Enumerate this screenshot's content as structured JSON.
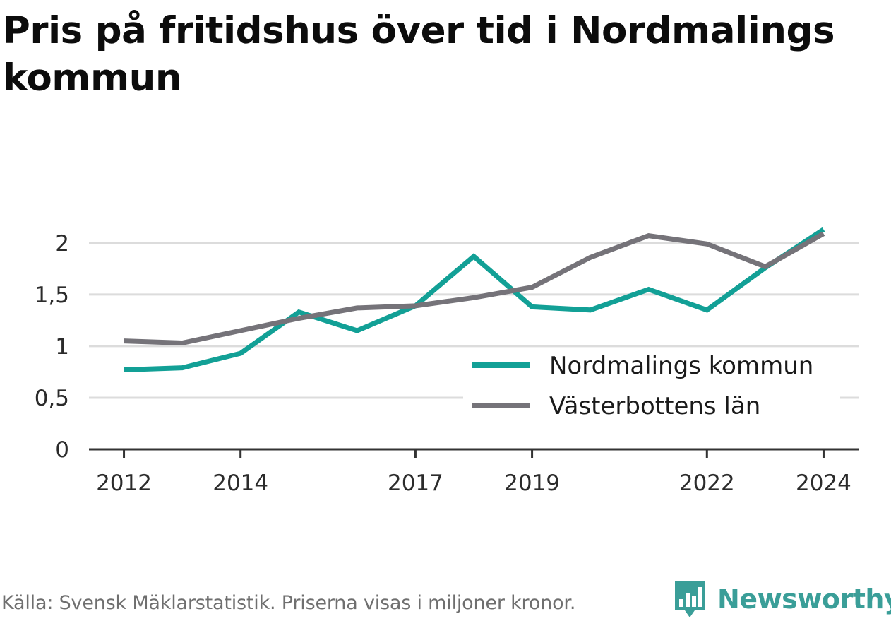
{
  "title": "Pris på fritidshus över tid i Nordmalings kommun",
  "footer": {
    "source": "Källa: Svensk Mäklarstatistik. Priserna visas i miljoner kronor.",
    "brand": "Newsworthy"
  },
  "colors": {
    "nordmaling": "#12a096",
    "vasterbotten": "#757379",
    "grid": "#dcdcdc",
    "axis": "#333333",
    "brand": "#3a9e98"
  },
  "icons": {
    "logo": "bar-chart-speech-bubble-icon"
  },
  "chart_data": {
    "type": "line",
    "title": "Pris på fritidshus över tid i Nordmalings kommun",
    "xlabel": "",
    "ylabel": "",
    "x": [
      2012,
      2013,
      2014,
      2015,
      2016,
      2017,
      2018,
      2019,
      2020,
      2021,
      2022,
      2023,
      2024
    ],
    "x_tick_labels": [
      "2012",
      "2014",
      "2017",
      "2019",
      "2022",
      "2024"
    ],
    "x_ticks": [
      2012,
      2014,
      2017,
      2019,
      2022,
      2024
    ],
    "xlim": [
      2011.4,
      2024.6
    ],
    "ylim": [
      0,
      2.3
    ],
    "y_ticks": [
      0,
      0.5,
      1,
      1.5,
      2
    ],
    "y_tick_labels": [
      "0",
      "0,5",
      "1",
      "1,5",
      "2"
    ],
    "grid": "horizontal",
    "legend_position": "bottom-right",
    "series": [
      {
        "name": "Nordmalings kommun",
        "color": "#12a096",
        "values": [
          0.77,
          0.79,
          0.93,
          1.33,
          1.15,
          1.39,
          1.87,
          1.38,
          1.35,
          1.55,
          1.35,
          1.76,
          2.13
        ]
      },
      {
        "name": "Västerbottens län",
        "color": "#757379",
        "values": [
          1.05,
          1.03,
          1.15,
          1.27,
          1.37,
          1.39,
          1.47,
          1.57,
          1.86,
          2.07,
          1.99,
          1.77,
          2.09
        ]
      }
    ]
  }
}
